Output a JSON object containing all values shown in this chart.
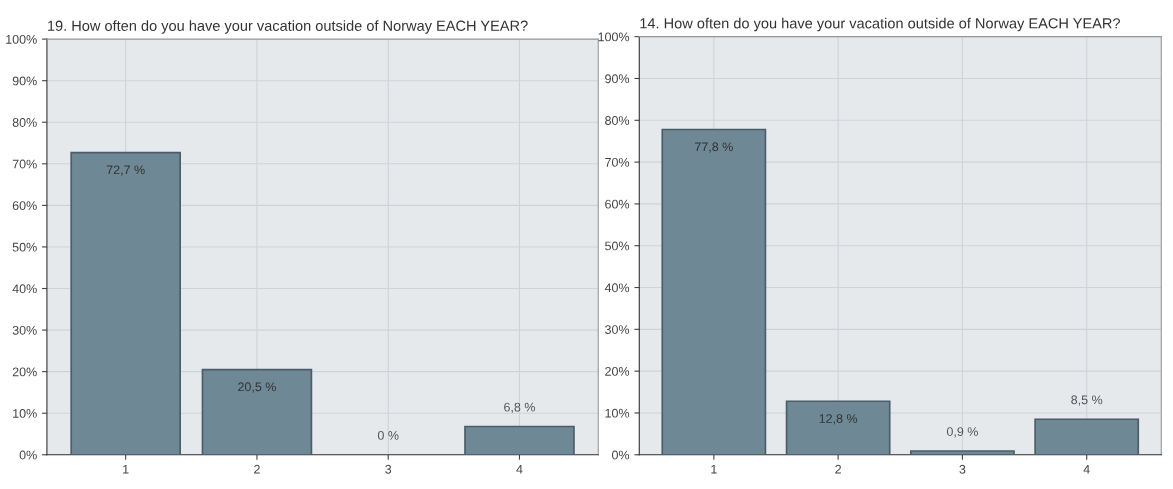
{
  "chart_data": [
    {
      "type": "bar",
      "title": "19. How often do you have your vacation outside of Norway EACH YEAR?",
      "categories": [
        "1",
        "2",
        "3",
        "4"
      ],
      "values": [
        72.7,
        20.5,
        0,
        6.8
      ],
      "value_labels": [
        "72,7 %",
        "20,5 %",
        "0 %",
        "6,8 %"
      ],
      "color": "#6f8896",
      "ylim": [
        0,
        100
      ],
      "yticks": [
        {
          "value": 0,
          "label": "0%"
        },
        {
          "value": 10,
          "label": "10%"
        },
        {
          "value": 20,
          "label": "20%"
        },
        {
          "value": 30,
          "label": "30%"
        },
        {
          "value": 40,
          "label": "40%"
        },
        {
          "value": 50,
          "label": "50%"
        },
        {
          "value": 60,
          "label": "60%"
        },
        {
          "value": 70,
          "label": "70%"
        },
        {
          "value": 80,
          "label": "80%"
        },
        {
          "value": 90,
          "label": "90%"
        },
        {
          "value": 100,
          "label": "100%"
        }
      ],
      "grid": true
    },
    {
      "type": "bar",
      "title": "14. How often do you have your vacation outside of Norway EACH YEAR?",
      "categories": [
        "1",
        "2",
        "3",
        "4"
      ],
      "values": [
        77.8,
        12.8,
        0.9,
        8.5
      ],
      "value_labels": [
        "77,8 %",
        "12,8 %",
        "0,9 %",
        "8,5 %"
      ],
      "color": "#6f8896",
      "ylim": [
        0,
        100
      ],
      "yticks": [
        {
          "value": 0,
          "label": "0%"
        },
        {
          "value": 10,
          "label": "10%"
        },
        {
          "value": 20,
          "label": "20%"
        },
        {
          "value": 30,
          "label": "30%"
        },
        {
          "value": 40,
          "label": "40%"
        },
        {
          "value": 50,
          "label": "50%"
        },
        {
          "value": 60,
          "label": "60%"
        },
        {
          "value": 70,
          "label": "70%"
        },
        {
          "value": 80,
          "label": "80%"
        },
        {
          "value": 90,
          "label": "90%"
        },
        {
          "value": 100,
          "label": "100%"
        }
      ],
      "grid": true
    }
  ]
}
